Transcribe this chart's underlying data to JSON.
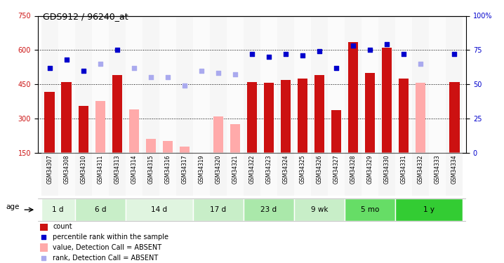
{
  "title": "GDS912 / 96240_at",
  "samples": [
    "GSM34307",
    "GSM34308",
    "GSM34310",
    "GSM34311",
    "GSM34313",
    "GSM34314",
    "GSM34315",
    "GSM34316",
    "GSM34317",
    "GSM34319",
    "GSM34320",
    "GSM34321",
    "GSM34322",
    "GSM34323",
    "GSM34324",
    "GSM34325",
    "GSM34326",
    "GSM34327",
    "GSM34328",
    "GSM34329",
    "GSM34330",
    "GSM34331",
    "GSM34332",
    "GSM34333",
    "GSM34334"
  ],
  "count_values": [
    415,
    460,
    355,
    null,
    490,
    null,
    null,
    null,
    null,
    null,
    null,
    null,
    460,
    455,
    470,
    475,
    490,
    335,
    635,
    500,
    610,
    475,
    null,
    null,
    460
  ],
  "absent_values": [
    null,
    null,
    null,
    375,
    null,
    340,
    210,
    200,
    175,
    null,
    310,
    275,
    null,
    null,
    null,
    null,
    null,
    null,
    null,
    null,
    null,
    null,
    455,
    null,
    null
  ],
  "rank_present": [
    62,
    68,
    60,
    null,
    75,
    null,
    null,
    null,
    null,
    null,
    null,
    null,
    72,
    70,
    72,
    71,
    74,
    62,
    78,
    75,
    79,
    72,
    null,
    null,
    72
  ],
  "rank_absent": [
    null,
    null,
    null,
    65,
    null,
    62,
    55,
    55,
    49,
    60,
    58,
    57,
    null,
    null,
    null,
    null,
    null,
    null,
    null,
    null,
    null,
    null,
    65,
    null,
    null
  ],
  "age_groups": [
    {
      "label": "1 d",
      "start": 0,
      "end": 2,
      "color": "#e0f5e0"
    },
    {
      "label": "6 d",
      "start": 2,
      "end": 5,
      "color": "#c8eec8"
    },
    {
      "label": "14 d",
      "start": 5,
      "end": 9,
      "color": "#e0f5e0"
    },
    {
      "label": "17 d",
      "start": 9,
      "end": 12,
      "color": "#c8eec8"
    },
    {
      "label": "23 d",
      "start": 12,
      "end": 15,
      "color": "#aae8aa"
    },
    {
      "label": "9 wk",
      "start": 15,
      "end": 18,
      "color": "#c8eec8"
    },
    {
      "label": "5 mo",
      "start": 18,
      "end": 21,
      "color": "#66dd66"
    },
    {
      "label": "1 y",
      "start": 21,
      "end": 25,
      "color": "#33cc33"
    }
  ],
  "ylim": [
    150,
    750
  ],
  "y_ticks_left": [
    150,
    300,
    450,
    600,
    750
  ],
  "y_ticks_right_vals": [
    "0",
    "25",
    "50",
    "75",
    "100%"
  ],
  "y_ticks_right_pos": [
    150,
    300,
    450,
    600,
    750
  ],
  "bar_color_present": "#cc1111",
  "bar_color_absent": "#ffaaaa",
  "dot_color_present": "#0000cc",
  "dot_color_absent": "#aaaaee",
  "tick_label_color_left": "#cc1111",
  "tick_label_color_right": "#0000cc",
  "legend_items": [
    {
      "color": "#cc1111",
      "style": "bar",
      "label": "count"
    },
    {
      "color": "#0000cc",
      "style": "dot",
      "label": "percentile rank within the sample"
    },
    {
      "color": "#ffaaaa",
      "style": "bar",
      "label": "value, Detection Call = ABSENT"
    },
    {
      "color": "#aaaaee",
      "style": "dot",
      "label": "rank, Detection Call = ABSENT"
    }
  ]
}
